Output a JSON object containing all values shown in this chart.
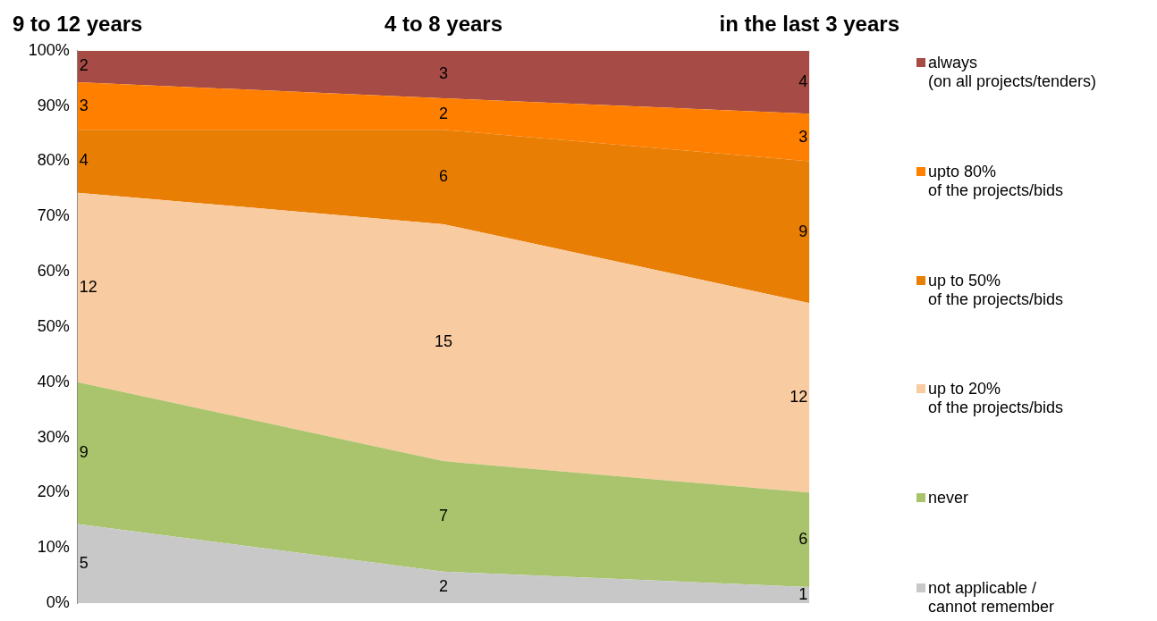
{
  "chart_data": {
    "type": "area",
    "stacked": true,
    "categories": [
      "9 to 12 years",
      "4 to 8 years",
      "in the last 3 years"
    ],
    "series": [
      {
        "name": "not applicable /\ncannot remember",
        "color": "#c8c8c8",
        "values": [
          14.3,
          5.7,
          2.9
        ]
      },
      {
        "name": "never",
        "color": "#a9c46c",
        "values": [
          25.7,
          20,
          17.1
        ]
      },
      {
        "name": "up to 20%\nof the projects/bids",
        "color": "#f9cba1",
        "values": [
          34.3,
          42.9,
          34.3
        ]
      },
      {
        "name": "up to 50%\nof the projects/bids",
        "color": "#e87e04",
        "values": [
          11.4,
          17.1,
          25.7
        ]
      },
      {
        "name": " upto 80%\nof the projects/bids",
        "color": "#ff7f00",
        "values": [
          8.6,
          5.7,
          8.6
        ]
      },
      {
        "name": "always\n(on all projects/tenders)",
        "color": "#a64b45",
        "values": [
          5.7,
          8.6,
          11.4
        ]
      }
    ],
    "annotations": [
      "5",
      "9",
      "12",
      "4",
      "3",
      "2",
      "2",
      "7",
      "15",
      "6",
      "2",
      "3",
      "1",
      "6",
      "12",
      "9",
      "3",
      "4"
    ],
    "ylim": [
      0,
      100
    ],
    "yticks": [
      {
        "value": 0,
        "label": "0%"
      },
      {
        "value": 10,
        "label": "10%"
      },
      {
        "value": 20,
        "label": "20%"
      },
      {
        "value": 30,
        "label": "30%"
      },
      {
        "value": 40,
        "label": "40%"
      },
      {
        "value": 50,
        "label": "50%"
      },
      {
        "value": 60,
        "label": "60%"
      },
      {
        "value": 70,
        "label": "70%"
      },
      {
        "value": 80,
        "label": "80%"
      },
      {
        "value": 90,
        "label": "90%"
      },
      {
        "value": 100,
        "label": "100%"
      }
    ],
    "grid": false,
    "legend": "right"
  }
}
